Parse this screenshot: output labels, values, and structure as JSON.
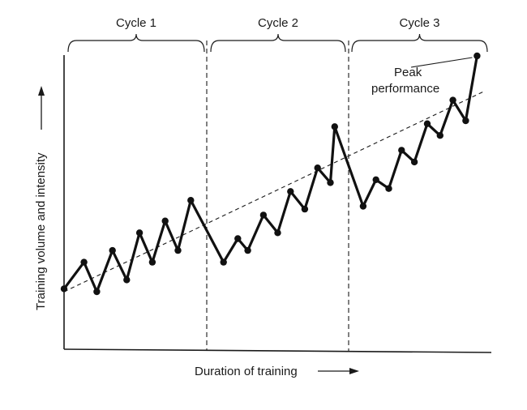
{
  "chart_data": {
    "type": "line",
    "title": "",
    "xlabel": "Duration of training",
    "ylabel": "Training volume and intensity",
    "xlim": [
      0,
      30
    ],
    "ylim": [
      0,
      10
    ],
    "grid": false,
    "cycles": [
      {
        "label": "Cycle 1",
        "start": 0,
        "end": 10
      },
      {
        "label": "Cycle 2",
        "start": 10,
        "end": 20
      },
      {
        "label": "Cycle 3",
        "start": 20,
        "end": 30
      }
    ],
    "series": [
      {
        "x": [
          0,
          1.4,
          2.3,
          3.4,
          4.4,
          5.3,
          6.2,
          7.1,
          8.0,
          8.9,
          11.2,
          12.2,
          12.9,
          14.0,
          15.0,
          15.9,
          16.9,
          17.8,
          18.7,
          19.0,
          21.0,
          21.9,
          22.8,
          23.7,
          24.6,
          25.5,
          26.4,
          27.3,
          28.2,
          29.0
        ],
        "y": [
          2.1,
          3.0,
          2.0,
          3.4,
          2.4,
          4.0,
          3.0,
          4.4,
          3.4,
          5.1,
          3.0,
          3.8,
          3.4,
          4.6,
          4.0,
          5.4,
          4.8,
          6.2,
          5.7,
          7.6,
          4.9,
          5.8,
          5.5,
          6.8,
          6.4,
          7.7,
          7.3,
          8.5,
          7.8,
          10.0
        ]
      }
    ],
    "trend": {
      "x": [
        0,
        29.5
      ],
      "y": [
        2.0,
        8.8
      ]
    },
    "annotation": {
      "text_line1": "Peak",
      "text_line2": "performance",
      "target_index": 29
    }
  }
}
